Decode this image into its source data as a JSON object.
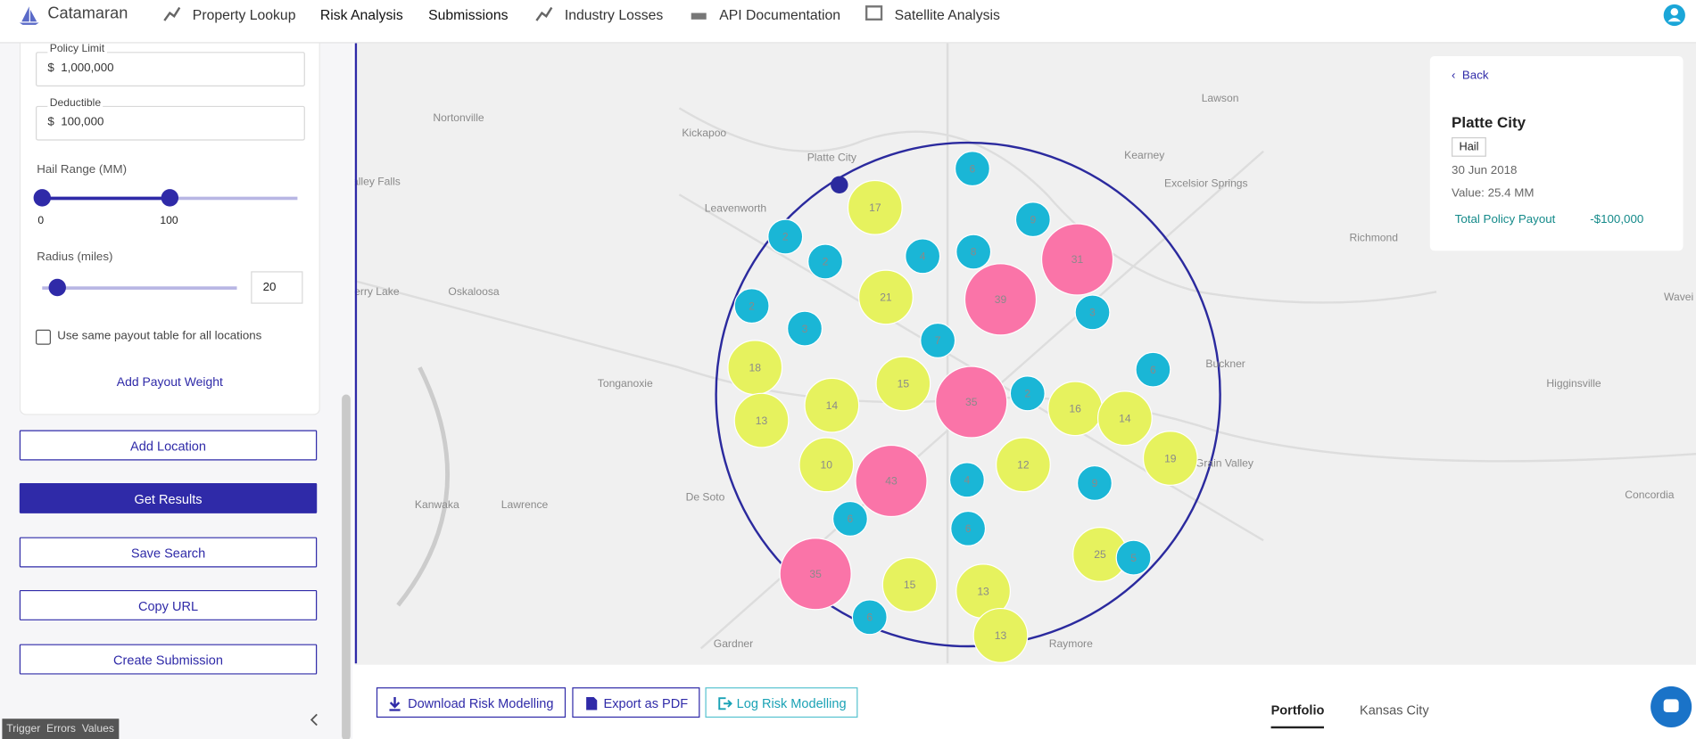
{
  "nav": {
    "brand": "Catamaran",
    "items": [
      "Property Lookup",
      "Risk Analysis",
      "Submissions",
      "Industry Losses",
      "API Documentation",
      "Satellite Analysis"
    ]
  },
  "sidebar": {
    "policy_limit": {
      "label": "Policy Limit",
      "prefix": "$",
      "value": "1,000,000"
    },
    "deductible": {
      "label": "Deductible",
      "prefix": "$",
      "value": "100,000"
    },
    "hail_range": {
      "label": "Hail Range (MM)",
      "min": "0",
      "max": "100"
    },
    "radius": {
      "label": "Radius (miles)",
      "value": "20"
    },
    "same_payout_checkbox": "Use same payout table for all locations",
    "add_payout_weight": "Add Payout Weight",
    "buttons": [
      "Add Location",
      "Get Results",
      "Save Search",
      "Copy URL",
      "Create Submission"
    ]
  },
  "debug_bar": [
    "Trigger",
    "Errors",
    "Values"
  ],
  "map": {
    "places": [
      "Nortonville",
      "Kickapoo",
      "Lawson",
      "Platte City",
      "Kearney",
      "Excelsior Springs",
      "Leavenworth",
      "alley Falls",
      "Oskaloosa",
      "Perry Lake",
      "Richmond",
      "Tonganoxie",
      "Buckner",
      "Higginsville",
      "Lawrence",
      "Kanwaka",
      "De Soto",
      "Grain Valley",
      "Concordia",
      "Gardner",
      "Raymore",
      "Wavei"
    ],
    "clusters": [
      "6",
      "17",
      "9",
      "2",
      "2",
      "4",
      "8",
      "31",
      "39",
      "21",
      "3",
      "2",
      "3",
      "7",
      "18",
      "6",
      "15",
      "35",
      "2",
      "14",
      "16",
      "14",
      "13",
      "19",
      "10",
      "43",
      "4",
      "12",
      "9",
      "6",
      "6",
      "25",
      "5",
      "35",
      "15",
      "13",
      "6",
      "13"
    ]
  },
  "info_panel": {
    "back": "Back",
    "title": "Platte City",
    "peril": "Hail",
    "date": "30 Jun 2018",
    "value": "Value: 25.4 MM",
    "payout_label": "Total Policy Payout",
    "payout_value": "-$100,000"
  },
  "bottom_bar": {
    "buttons": [
      "Download Risk Modelling",
      "Export as PDF",
      "Log Risk Modelling"
    ],
    "tabs": [
      "Portfolio",
      "Kansas City"
    ]
  }
}
